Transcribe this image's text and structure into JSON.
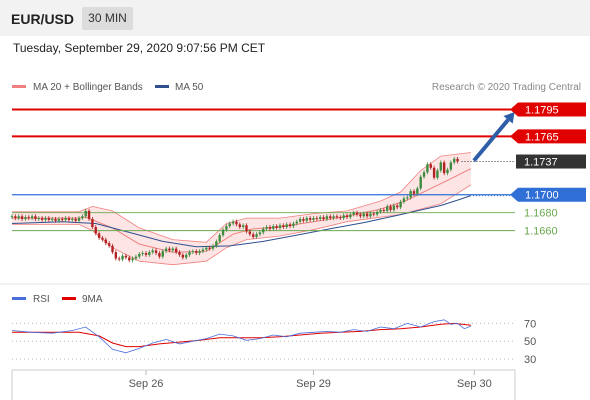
{
  "header": {
    "pair": "EUR/USD",
    "timeframe": "30 MIN"
  },
  "chart_info": {
    "datetime": "Tuesday, September 29, 2020 9:07:56 PM CET"
  },
  "colors": {
    "bollinger": "#f08080",
    "bollinger_fill": "#fcdede",
    "ma50": "#2f4f8f",
    "resistance": "#e00000",
    "pivot": "#2f6fd6",
    "support": "#6aa84f",
    "current": "#333333",
    "rsi": "#4a6fdc",
    "rsi_ma": "#e00000",
    "up_candle": "#3d8b3d",
    "down_candle": "#b22222",
    "arrow": "#2f5ea8"
  },
  "chart_data": [
    {
      "type": "candlestick",
      "legend": [
        {
          "name": "MA 20 + Bollinger Bands",
          "color": "#f08080"
        },
        {
          "name": "MA 50",
          "color": "#2f4f8f"
        }
      ],
      "copyright": "Research © 2020 Trading Central",
      "ylim": [
        1.1605,
        1.181
      ],
      "x_ticks": [
        {
          "label": "Sep 26",
          "index": 40
        },
        {
          "label": "Sep 29",
          "index": 90
        },
        {
          "label": "Sep 30",
          "index": 138
        }
      ],
      "levels": [
        {
          "label": "1.1795",
          "value": 1.1795,
          "kind": "resistance"
        },
        {
          "label": "1.1765",
          "value": 1.1765,
          "kind": "resistance"
        },
        {
          "label": "1.1737",
          "value": 1.1737,
          "kind": "current"
        },
        {
          "label": "1.1700",
          "value": 1.17,
          "kind": "pivot"
        },
        {
          "label": "1.1680",
          "value": 1.168,
          "kind": "support"
        },
        {
          "label": "1.1660",
          "value": 1.166,
          "kind": "support"
        }
      ],
      "arrow": {
        "from_index": 137,
        "from_value": 1.1738,
        "to_index": 150,
        "to_value": 1.1792
      },
      "candles": [
        [
          1.1675,
          1.1676
        ],
        [
          1.1676,
          1.1674
        ],
        [
          1.1674,
          1.1676
        ],
        [
          1.1676,
          1.1673
        ],
        [
          1.1673,
          1.1675
        ],
        [
          1.1675,
          1.1674
        ],
        [
          1.1674,
          1.1676
        ],
        [
          1.1676,
          1.1673
        ],
        [
          1.1673,
          1.1674
        ],
        [
          1.1674,
          1.1672
        ],
        [
          1.1672,
          1.1674
        ],
        [
          1.1674,
          1.1672
        ],
        [
          1.1672,
          1.1673
        ],
        [
          1.1673,
          1.1671
        ],
        [
          1.1671,
          1.1673
        ],
        [
          1.1673,
          1.1672
        ],
        [
          1.1672,
          1.1674
        ],
        [
          1.1674,
          1.1672
        ],
        [
          1.1672,
          1.1673
        ],
        [
          1.1673,
          1.1671
        ],
        [
          1.1671,
          1.1674
        ],
        [
          1.1674,
          1.1676
        ],
        [
          1.1676,
          1.1682
        ],
        [
          1.1682,
          1.1673
        ],
        [
          1.1673,
          1.1664
        ],
        [
          1.1664,
          1.1657
        ],
        [
          1.1657,
          1.1652
        ],
        [
          1.1652,
          1.165
        ],
        [
          1.165,
          1.1646
        ],
        [
          1.1646,
          1.1643
        ],
        [
          1.1643,
          1.1636
        ],
        [
          1.1636,
          1.1629
        ],
        [
          1.1629,
          1.1628
        ],
        [
          1.1628,
          1.1632
        ],
        [
          1.1632,
          1.163
        ],
        [
          1.163,
          1.1627
        ],
        [
          1.1627,
          1.1629
        ],
        [
          1.1629,
          1.1631
        ],
        [
          1.1631,
          1.1634
        ],
        [
          1.1634,
          1.1635
        ],
        [
          1.1635,
          1.1633
        ],
        [
          1.1633,
          1.1636
        ],
        [
          1.1636,
          1.1638
        ],
        [
          1.1638,
          1.1635
        ],
        [
          1.1635,
          1.1631
        ],
        [
          1.1631,
          1.1637
        ],
        [
          1.1637,
          1.164
        ],
        [
          1.164,
          1.1638
        ],
        [
          1.1638,
          1.164
        ],
        [
          1.164,
          1.1636
        ],
        [
          1.1636,
          1.1633
        ],
        [
          1.1633,
          1.163
        ],
        [
          1.163,
          1.1633
        ],
        [
          1.1633,
          1.1636
        ],
        [
          1.1636,
          1.1637
        ],
        [
          1.1637,
          1.1635
        ],
        [
          1.1635,
          1.1637
        ],
        [
          1.1637,
          1.1639
        ],
        [
          1.1639,
          1.1641
        ],
        [
          1.1641,
          1.164
        ],
        [
          1.164,
          1.1643
        ],
        [
          1.1643,
          1.1648
        ],
        [
          1.1648,
          1.1655
        ],
        [
          1.1655,
          1.1661
        ],
        [
          1.1661,
          1.1665
        ],
        [
          1.1665,
          1.1668
        ],
        [
          1.1668,
          1.167
        ],
        [
          1.167,
          1.1667
        ],
        [
          1.1667,
          1.1664
        ],
        [
          1.1664,
          1.1666
        ],
        [
          1.1666,
          1.1659
        ],
        [
          1.1659,
          1.1656
        ],
        [
          1.1656,
          1.1653
        ],
        [
          1.1653,
          1.1656
        ],
        [
          1.1656,
          1.1658
        ],
        [
          1.1658,
          1.1662
        ],
        [
          1.1662,
          1.1664
        ],
        [
          1.1664,
          1.1662
        ],
        [
          1.1662,
          1.1665
        ],
        [
          1.1665,
          1.1663
        ],
        [
          1.1663,
          1.1666
        ],
        [
          1.1666,
          1.1664
        ],
        [
          1.1664,
          1.1667
        ],
        [
          1.1667,
          1.1665
        ],
        [
          1.1665,
          1.1668
        ],
        [
          1.1668,
          1.167
        ],
        [
          1.167,
          1.1673
        ],
        [
          1.1673,
          1.1671
        ],
        [
          1.1671,
          1.1674
        ],
        [
          1.1674,
          1.1672
        ],
        [
          1.1672,
          1.1674
        ],
        [
          1.1674,
          1.1673
        ],
        [
          1.1673,
          1.1675
        ],
        [
          1.1675,
          1.1673
        ],
        [
          1.1673,
          1.1676
        ],
        [
          1.1676,
          1.1674
        ],
        [
          1.1674,
          1.1676
        ],
        [
          1.1676,
          1.1675
        ],
        [
          1.1675,
          1.1674
        ],
        [
          1.1674,
          1.1677
        ],
        [
          1.1677,
          1.1675
        ],
        [
          1.1675,
          1.1678
        ],
        [
          1.1678,
          1.168
        ],
        [
          1.168,
          1.1678
        ],
        [
          1.1678,
          1.1676
        ],
        [
          1.1676,
          1.1679
        ],
        [
          1.1679,
          1.1676
        ],
        [
          1.1676,
          1.1679
        ],
        [
          1.1679,
          1.1678
        ],
        [
          1.1678,
          1.1681
        ],
        [
          1.1681,
          1.1683
        ],
        [
          1.1683,
          1.1682
        ],
        [
          1.1682,
          1.1687
        ],
        [
          1.1687,
          1.1683
        ],
        [
          1.1683,
          1.1688
        ],
        [
          1.1688,
          1.1686
        ],
        [
          1.1686,
          1.1692
        ],
        [
          1.1692,
          1.1696
        ],
        [
          1.1696,
          1.1697
        ],
        [
          1.1697,
          1.1704
        ],
        [
          1.1704,
          1.1701
        ],
        [
          1.1701,
          1.1707
        ],
        [
          1.1707,
          1.172
        ],
        [
          1.172,
          1.1725
        ],
        [
          1.1725,
          1.1734
        ],
        [
          1.1734,
          1.173
        ],
        [
          1.173,
          1.1719
        ],
        [
          1.1719,
          1.1727
        ],
        [
          1.1727,
          1.1736
        ],
        [
          1.1736,
          1.1724
        ],
        [
          1.1724,
          1.1728
        ],
        [
          1.1728,
          1.1736
        ],
        [
          1.1736,
          1.174
        ],
        [
          1.174,
          1.1737
        ]
      ],
      "ma20": [
        [
          0,
          1.1674
        ],
        [
          20,
          1.1674
        ],
        [
          22,
          1.1675
        ],
        [
          30,
          1.1663
        ],
        [
          38,
          1.1645
        ],
        [
          48,
          1.1636
        ],
        [
          58,
          1.1637
        ],
        [
          66,
          1.1656
        ],
        [
          72,
          1.1662
        ],
        [
          80,
          1.1664
        ],
        [
          90,
          1.167
        ],
        [
          100,
          1.1676
        ],
        [
          110,
          1.1684
        ],
        [
          118,
          1.1694
        ],
        [
          125,
          1.1707
        ],
        [
          130,
          1.1716
        ],
        [
          137,
          1.1729
        ]
      ],
      "bollinger_upper": [
        [
          0,
          1.1681
        ],
        [
          20,
          1.1681
        ],
        [
          24,
          1.1687
        ],
        [
          30,
          1.1682
        ],
        [
          38,
          1.1663
        ],
        [
          48,
          1.165
        ],
        [
          58,
          1.1647
        ],
        [
          64,
          1.1668
        ],
        [
          70,
          1.1674
        ],
        [
          80,
          1.1674
        ],
        [
          90,
          1.1679
        ],
        [
          100,
          1.1682
        ],
        [
          110,
          1.1693
        ],
        [
          116,
          1.1703
        ],
        [
          122,
          1.1727
        ],
        [
          128,
          1.1743
        ],
        [
          137,
          1.1747
        ]
      ],
      "bollinger_lower": [
        [
          0,
          1.1667
        ],
        [
          20,
          1.1667
        ],
        [
          24,
          1.166
        ],
        [
          30,
          1.1641
        ],
        [
          38,
          1.1626
        ],
        [
          48,
          1.1622
        ],
        [
          58,
          1.1626
        ],
        [
          64,
          1.1641
        ],
        [
          70,
          1.165
        ],
        [
          80,
          1.1654
        ],
        [
          90,
          1.1661
        ],
        [
          100,
          1.167
        ],
        [
          110,
          1.1675
        ],
        [
          116,
          1.1678
        ],
        [
          122,
          1.1684
        ],
        [
          128,
          1.169
        ],
        [
          137,
          1.1711
        ]
      ],
      "ma50": [
        [
          0,
          1.1668
        ],
        [
          15,
          1.167
        ],
        [
          25,
          1.1668
        ],
        [
          35,
          1.1658
        ],
        [
          45,
          1.1648
        ],
        [
          55,
          1.1642
        ],
        [
          65,
          1.1643
        ],
        [
          75,
          1.1648
        ],
        [
          85,
          1.1655
        ],
        [
          95,
          1.1662
        ],
        [
          105,
          1.1669
        ],
        [
          115,
          1.1677
        ],
        [
          122,
          1.1683
        ],
        [
          128,
          1.1688
        ],
        [
          133,
          1.1694
        ],
        [
          137,
          1.1699
        ]
      ]
    },
    {
      "type": "line",
      "legend": [
        {
          "name": "RSI",
          "color": "#4a6fdc"
        },
        {
          "name": "9MA",
          "color": "#e00000"
        }
      ],
      "ylim": [
        20,
        85
      ],
      "y_ticks": [
        {
          "label": "70",
          "value": 70
        },
        {
          "label": "50",
          "value": 50
        },
        {
          "label": "30",
          "value": 30
        }
      ],
      "rsi": [
        [
          0,
          62
        ],
        [
          6,
          60
        ],
        [
          12,
          59
        ],
        [
          18,
          62
        ],
        [
          22,
          66
        ],
        [
          26,
          55
        ],
        [
          30,
          41
        ],
        [
          34,
          37
        ],
        [
          38,
          42
        ],
        [
          42,
          48
        ],
        [
          46,
          52
        ],
        [
          50,
          47
        ],
        [
          54,
          50
        ],
        [
          58,
          53
        ],
        [
          62,
          58
        ],
        [
          66,
          56
        ],
        [
          70,
          51
        ],
        [
          74,
          53
        ],
        [
          78,
          57
        ],
        [
          82,
          55
        ],
        [
          86,
          59
        ],
        [
          90,
          60
        ],
        [
          94,
          61
        ],
        [
          98,
          60
        ],
        [
          102,
          63
        ],
        [
          106,
          61
        ],
        [
          110,
          66
        ],
        [
          114,
          64
        ],
        [
          118,
          70
        ],
        [
          122,
          66
        ],
        [
          126,
          72
        ],
        [
          129,
          74
        ],
        [
          131,
          69
        ],
        [
          133,
          70
        ],
        [
          135,
          64
        ],
        [
          137,
          67
        ]
      ],
      "rsi_ma": [
        [
          0,
          60
        ],
        [
          10,
          60
        ],
        [
          20,
          60
        ],
        [
          26,
          56
        ],
        [
          30,
          48
        ],
        [
          34,
          44
        ],
        [
          38,
          44
        ],
        [
          44,
          47
        ],
        [
          50,
          49
        ],
        [
          56,
          51
        ],
        [
          62,
          54
        ],
        [
          68,
          54
        ],
        [
          74,
          54
        ],
        [
          80,
          55
        ],
        [
          86,
          57
        ],
        [
          92,
          59
        ],
        [
          98,
          60
        ],
        [
          104,
          61
        ],
        [
          110,
          63
        ],
        [
          116,
          64
        ],
        [
          122,
          66
        ],
        [
          128,
          69
        ],
        [
          132,
          70
        ],
        [
          137,
          68
        ]
      ]
    }
  ]
}
